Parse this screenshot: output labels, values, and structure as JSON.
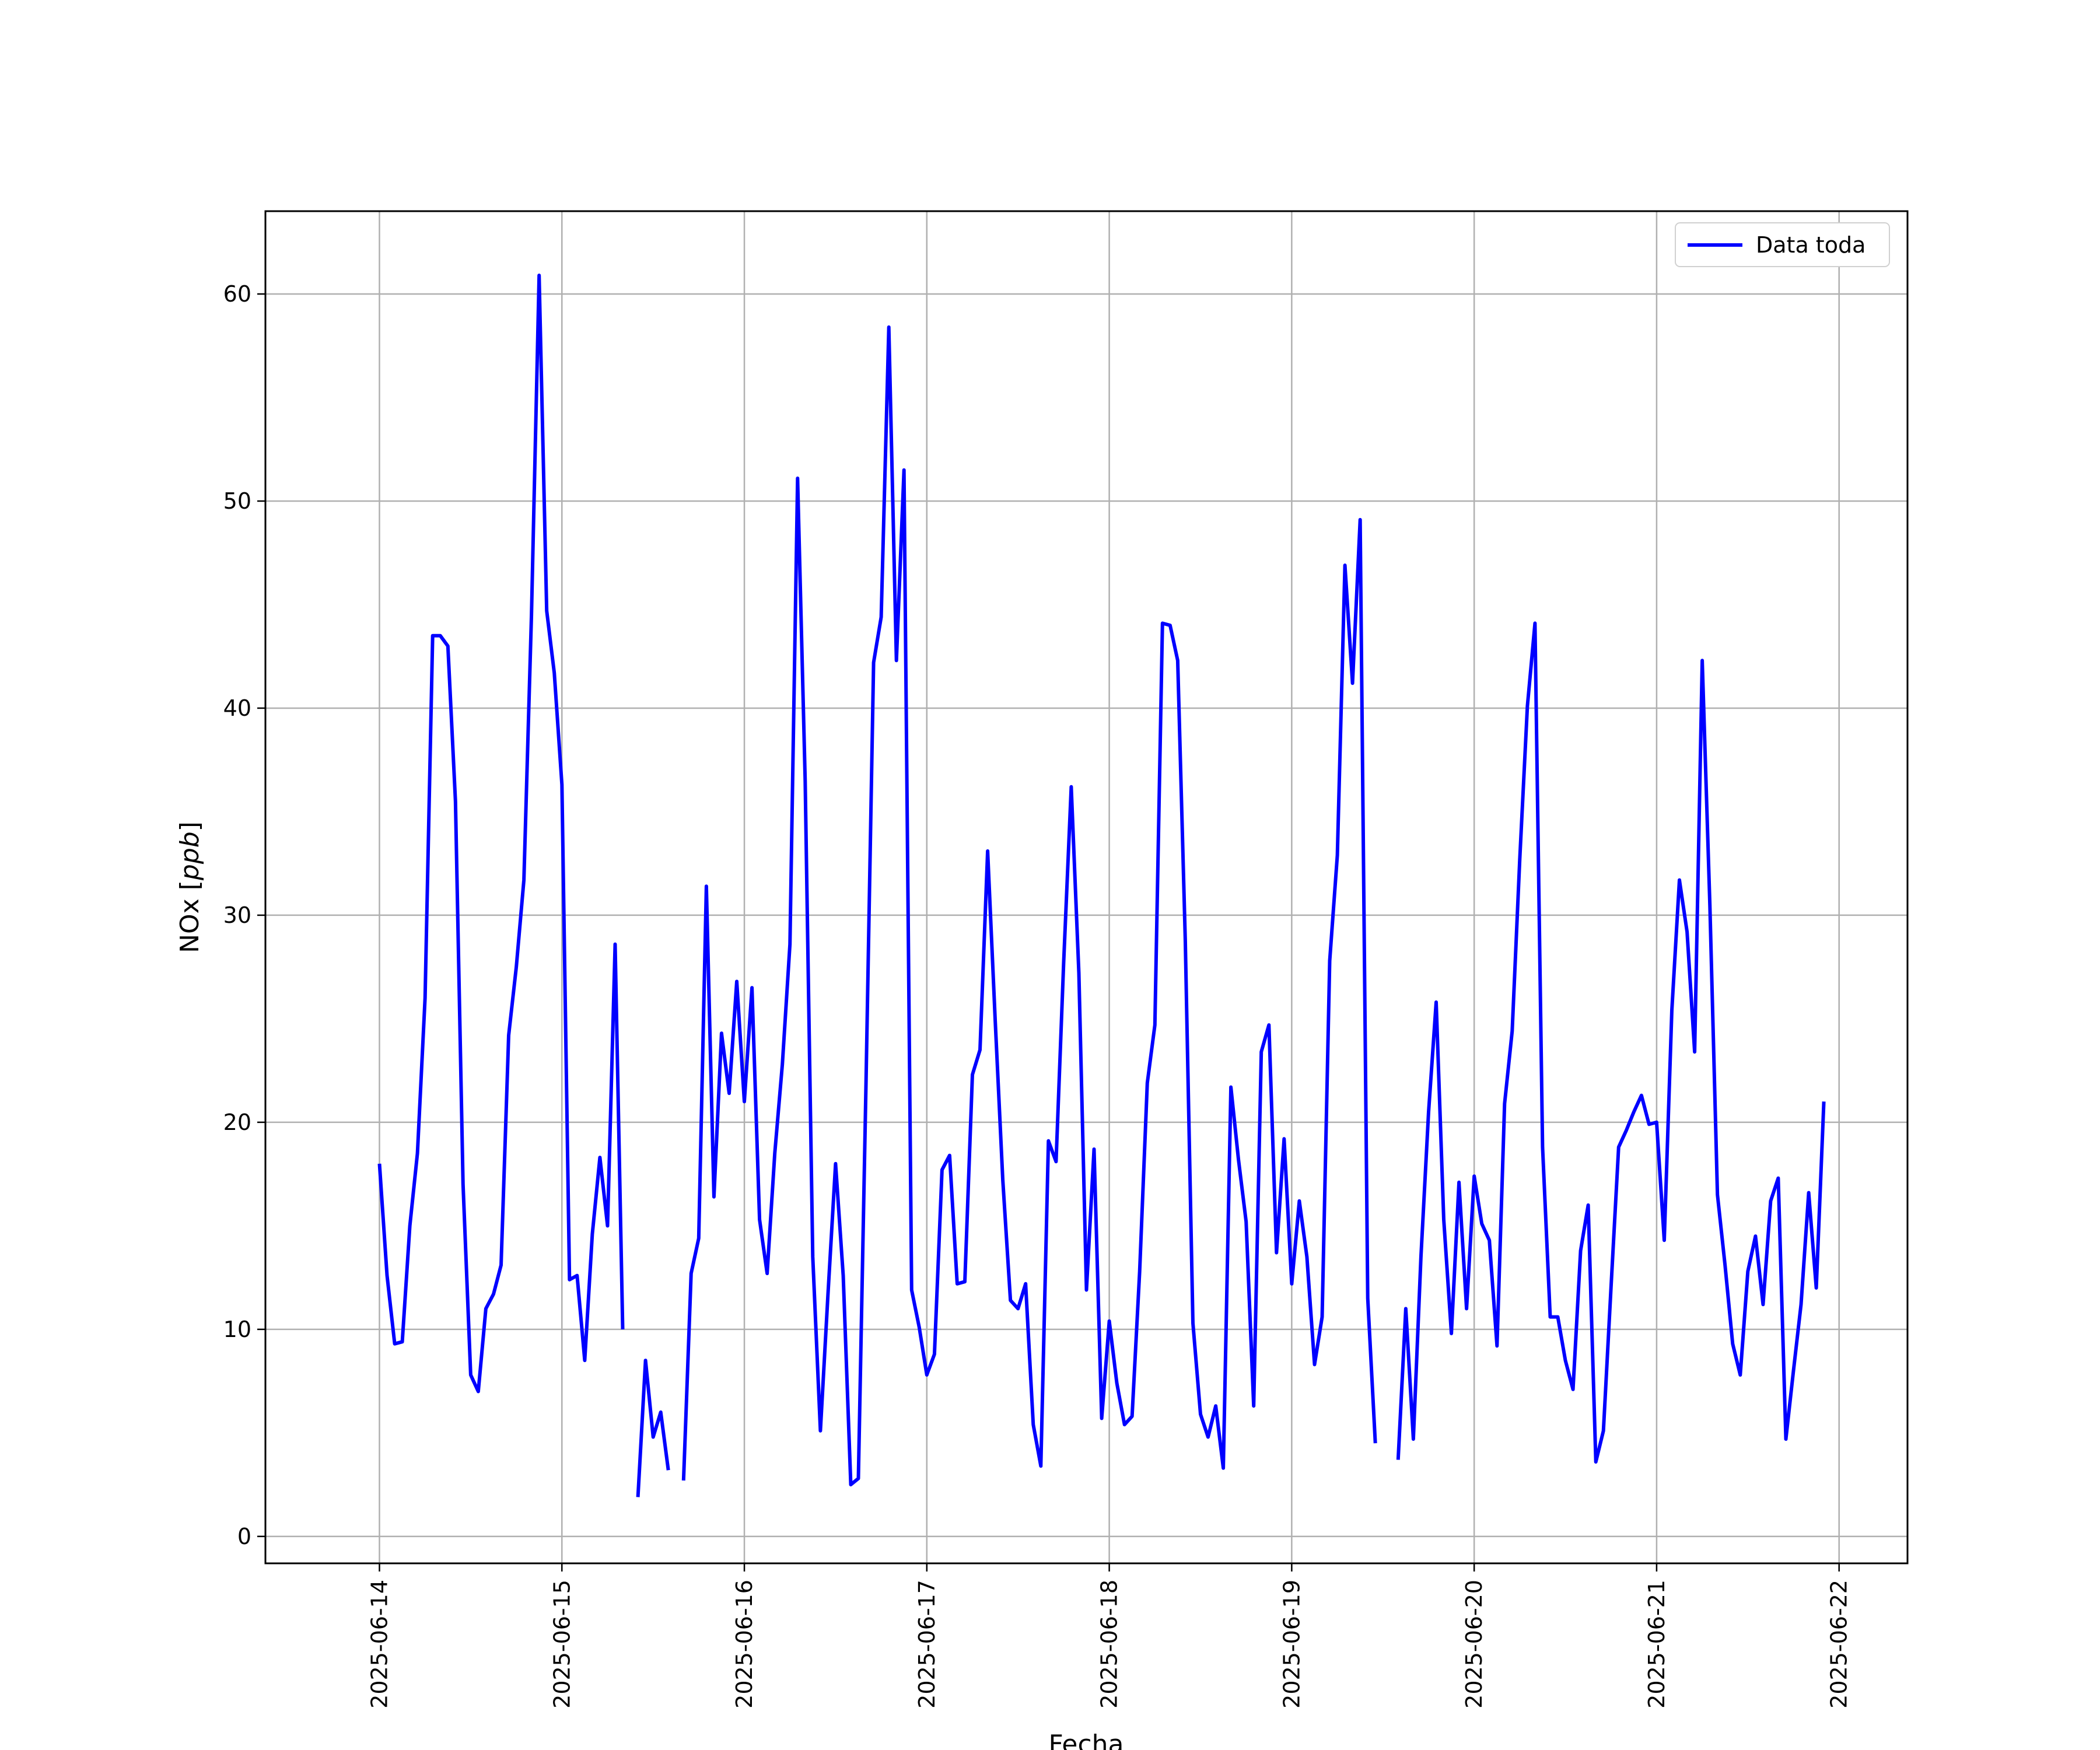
{
  "chart_data": {
    "type": "line",
    "title": "",
    "xlabel": "Fecha",
    "ylabel_main": "NOx [",
    "ylabel_unit": "ppb",
    "ylabel_end": "]",
    "x_ticks": [
      "2025-06-14",
      "2025-06-15",
      "2025-06-16",
      "2025-06-17",
      "2025-06-18",
      "2025-06-19",
      "2025-06-20",
      "2025-06-21",
      "2025-06-22"
    ],
    "y_ticks": [
      "0",
      "10",
      "20",
      "30",
      "40",
      "50",
      "60"
    ],
    "xlim": [
      "2025-06-13 09:00",
      "2025-06-22 09:00"
    ],
    "ylim": [
      -1.3,
      64
    ],
    "grid": true,
    "legend_position": "top-right",
    "colors": {
      "series": "#0000ff",
      "grid": "#b0b0b0",
      "frame": "#000000"
    },
    "series": [
      {
        "name": "Data toda",
        "x_hours_from": "2025-06-14 00:00",
        "step_hours": 1,
        "points": [
          [
            0,
            18.0
          ],
          [
            1,
            12.6
          ],
          [
            2,
            9.3
          ],
          [
            3,
            9.4
          ],
          [
            4,
            15.0
          ],
          [
            5,
            18.5
          ],
          [
            6,
            26.0
          ],
          [
            7,
            43.5
          ],
          [
            8,
            43.5
          ],
          [
            9,
            43.0
          ],
          [
            10,
            35.5
          ],
          [
            11,
            17.0
          ],
          [
            12,
            7.8
          ],
          [
            13,
            7.0
          ],
          [
            14,
            11.0
          ],
          [
            15,
            11.7
          ],
          [
            16,
            13.1
          ],
          [
            17,
            24.2
          ],
          [
            18,
            27.5
          ],
          [
            19,
            31.7
          ],
          [
            20,
            44.5
          ],
          [
            21,
            60.9
          ],
          [
            22,
            44.7
          ],
          [
            23,
            41.7
          ],
          [
            24,
            36.3
          ],
          [
            25,
            12.4
          ],
          [
            26,
            12.6
          ],
          [
            27,
            8.5
          ],
          [
            28,
            14.6
          ],
          [
            29,
            18.3
          ],
          [
            30,
            15.0
          ],
          [
            31,
            28.6
          ],
          [
            32,
            10.0
          ],
          [
            33,
            null
          ],
          [
            34,
            1.9
          ],
          [
            35,
            8.5
          ],
          [
            36,
            4.8
          ],
          [
            37,
            6.0
          ],
          [
            38,
            3.2
          ],
          [
            39,
            null
          ],
          [
            40,
            2.7
          ],
          [
            41,
            12.7
          ],
          [
            42,
            14.4
          ],
          [
            43,
            31.4
          ],
          [
            44,
            16.4
          ],
          [
            45,
            24.3
          ],
          [
            46,
            21.4
          ],
          [
            47,
            26.8
          ],
          [
            48,
            21.0
          ],
          [
            49,
            26.5
          ],
          [
            50,
            15.3
          ],
          [
            51,
            12.7
          ],
          [
            52,
            18.5
          ],
          [
            53,
            22.8
          ],
          [
            54,
            28.6
          ],
          [
            55,
            51.1
          ],
          [
            56,
            36.5
          ],
          [
            57,
            13.5
          ],
          [
            58,
            5.1
          ],
          [
            59,
            11.7
          ],
          [
            60,
            18.0
          ],
          [
            61,
            12.6
          ],
          [
            62,
            2.5
          ],
          [
            63,
            2.8
          ],
          [
            64,
            21.9
          ],
          [
            65,
            42.2
          ],
          [
            66,
            44.4
          ],
          [
            67,
            58.4
          ],
          [
            68,
            42.3
          ],
          [
            69,
            51.5
          ],
          [
            70,
            11.9
          ],
          [
            71,
            10.1
          ],
          [
            72,
            7.8
          ],
          [
            73,
            8.8
          ],
          [
            74,
            17.7
          ],
          [
            75,
            18.4
          ],
          [
            76,
            12.2
          ],
          [
            77,
            12.3
          ],
          [
            78,
            22.3
          ],
          [
            79,
            23.5
          ],
          [
            80,
            33.1
          ],
          [
            81,
            24.9
          ],
          [
            82,
            17.2
          ],
          [
            83,
            11.4
          ],
          [
            84,
            11.0
          ],
          [
            85,
            12.2
          ],
          [
            86,
            5.4
          ],
          [
            87,
            3.4
          ],
          [
            88,
            19.1
          ],
          [
            89,
            18.1
          ],
          [
            90,
            27.7
          ],
          [
            91,
            36.2
          ],
          [
            92,
            27.2
          ],
          [
            93,
            11.9
          ],
          [
            94,
            18.7
          ],
          [
            95,
            5.7
          ],
          [
            96,
            10.4
          ],
          [
            97,
            7.4
          ],
          [
            98,
            5.4
          ],
          [
            99,
            5.8
          ],
          [
            100,
            12.8
          ],
          [
            101,
            21.9
          ],
          [
            102,
            24.7
          ],
          [
            103,
            44.1
          ],
          [
            104,
            44.0
          ],
          [
            105,
            42.3
          ],
          [
            106,
            28.8
          ],
          [
            107,
            10.3
          ],
          [
            108,
            5.9
          ],
          [
            109,
            4.8
          ],
          [
            110,
            6.3
          ],
          [
            111,
            3.3
          ],
          [
            112,
            21.7
          ],
          [
            113,
            18.2
          ],
          [
            114,
            15.2
          ],
          [
            115,
            6.3
          ],
          [
            116,
            23.4
          ],
          [
            117,
            24.7
          ],
          [
            118,
            13.7
          ],
          [
            119,
            19.2
          ],
          [
            120,
            12.2
          ],
          [
            121,
            16.2
          ],
          [
            122,
            13.5
          ],
          [
            123,
            8.3
          ],
          [
            124,
            10.6
          ],
          [
            125,
            27.8
          ],
          [
            126,
            32.9
          ],
          [
            127,
            46.9
          ],
          [
            128,
            41.2
          ],
          [
            129,
            49.1
          ],
          [
            130,
            11.5
          ],
          [
            131,
            4.5
          ],
          [
            132,
            null
          ],
          [
            133,
            null
          ],
          [
            134,
            3.7
          ],
          [
            135,
            11.0
          ],
          [
            136,
            4.7
          ],
          [
            137,
            13.5
          ],
          [
            138,
            20.5
          ],
          [
            139,
            25.8
          ],
          [
            140,
            15.3
          ],
          [
            141,
            9.8
          ],
          [
            142,
            17.1
          ],
          [
            143,
            11.0
          ],
          [
            144,
            17.4
          ],
          [
            145,
            15.1
          ],
          [
            146,
            14.3
          ],
          [
            147,
            9.2
          ],
          [
            148,
            20.9
          ],
          [
            149,
            24.4
          ],
          [
            150,
            32.7
          ],
          [
            151,
            40.1
          ],
          [
            152,
            44.1
          ],
          [
            153,
            18.8
          ],
          [
            154,
            10.6
          ],
          [
            155,
            10.6
          ],
          [
            156,
            8.5
          ],
          [
            157,
            7.1
          ],
          [
            158,
            13.8
          ],
          [
            159,
            16.0
          ],
          [
            160,
            3.6
          ],
          [
            161,
            5.1
          ],
          [
            162,
            12.0
          ],
          [
            163,
            18.8
          ],
          [
            164,
            19.6
          ],
          [
            165,
            20.5
          ],
          [
            166,
            21.3
          ],
          [
            167,
            19.9
          ],
          [
            168,
            20.0
          ],
          [
            169,
            14.3
          ],
          [
            170,
            25.4
          ],
          [
            171,
            31.7
          ],
          [
            172,
            29.2
          ],
          [
            173,
            23.4
          ],
          [
            174,
            42.3
          ],
          [
            175,
            30.5
          ],
          [
            176,
            16.5
          ],
          [
            177,
            13.1
          ],
          [
            178,
            9.3
          ],
          [
            179,
            7.8
          ],
          [
            180,
            12.8
          ],
          [
            181,
            14.5
          ],
          [
            182,
            11.2
          ],
          [
            183,
            16.2
          ],
          [
            184,
            17.3
          ],
          [
            185,
            4.7
          ],
          [
            186,
            8.0
          ],
          [
            187,
            11.2
          ],
          [
            188,
            16.6
          ],
          [
            189,
            12.0
          ],
          [
            190,
            21.0
          ]
        ]
      }
    ]
  }
}
